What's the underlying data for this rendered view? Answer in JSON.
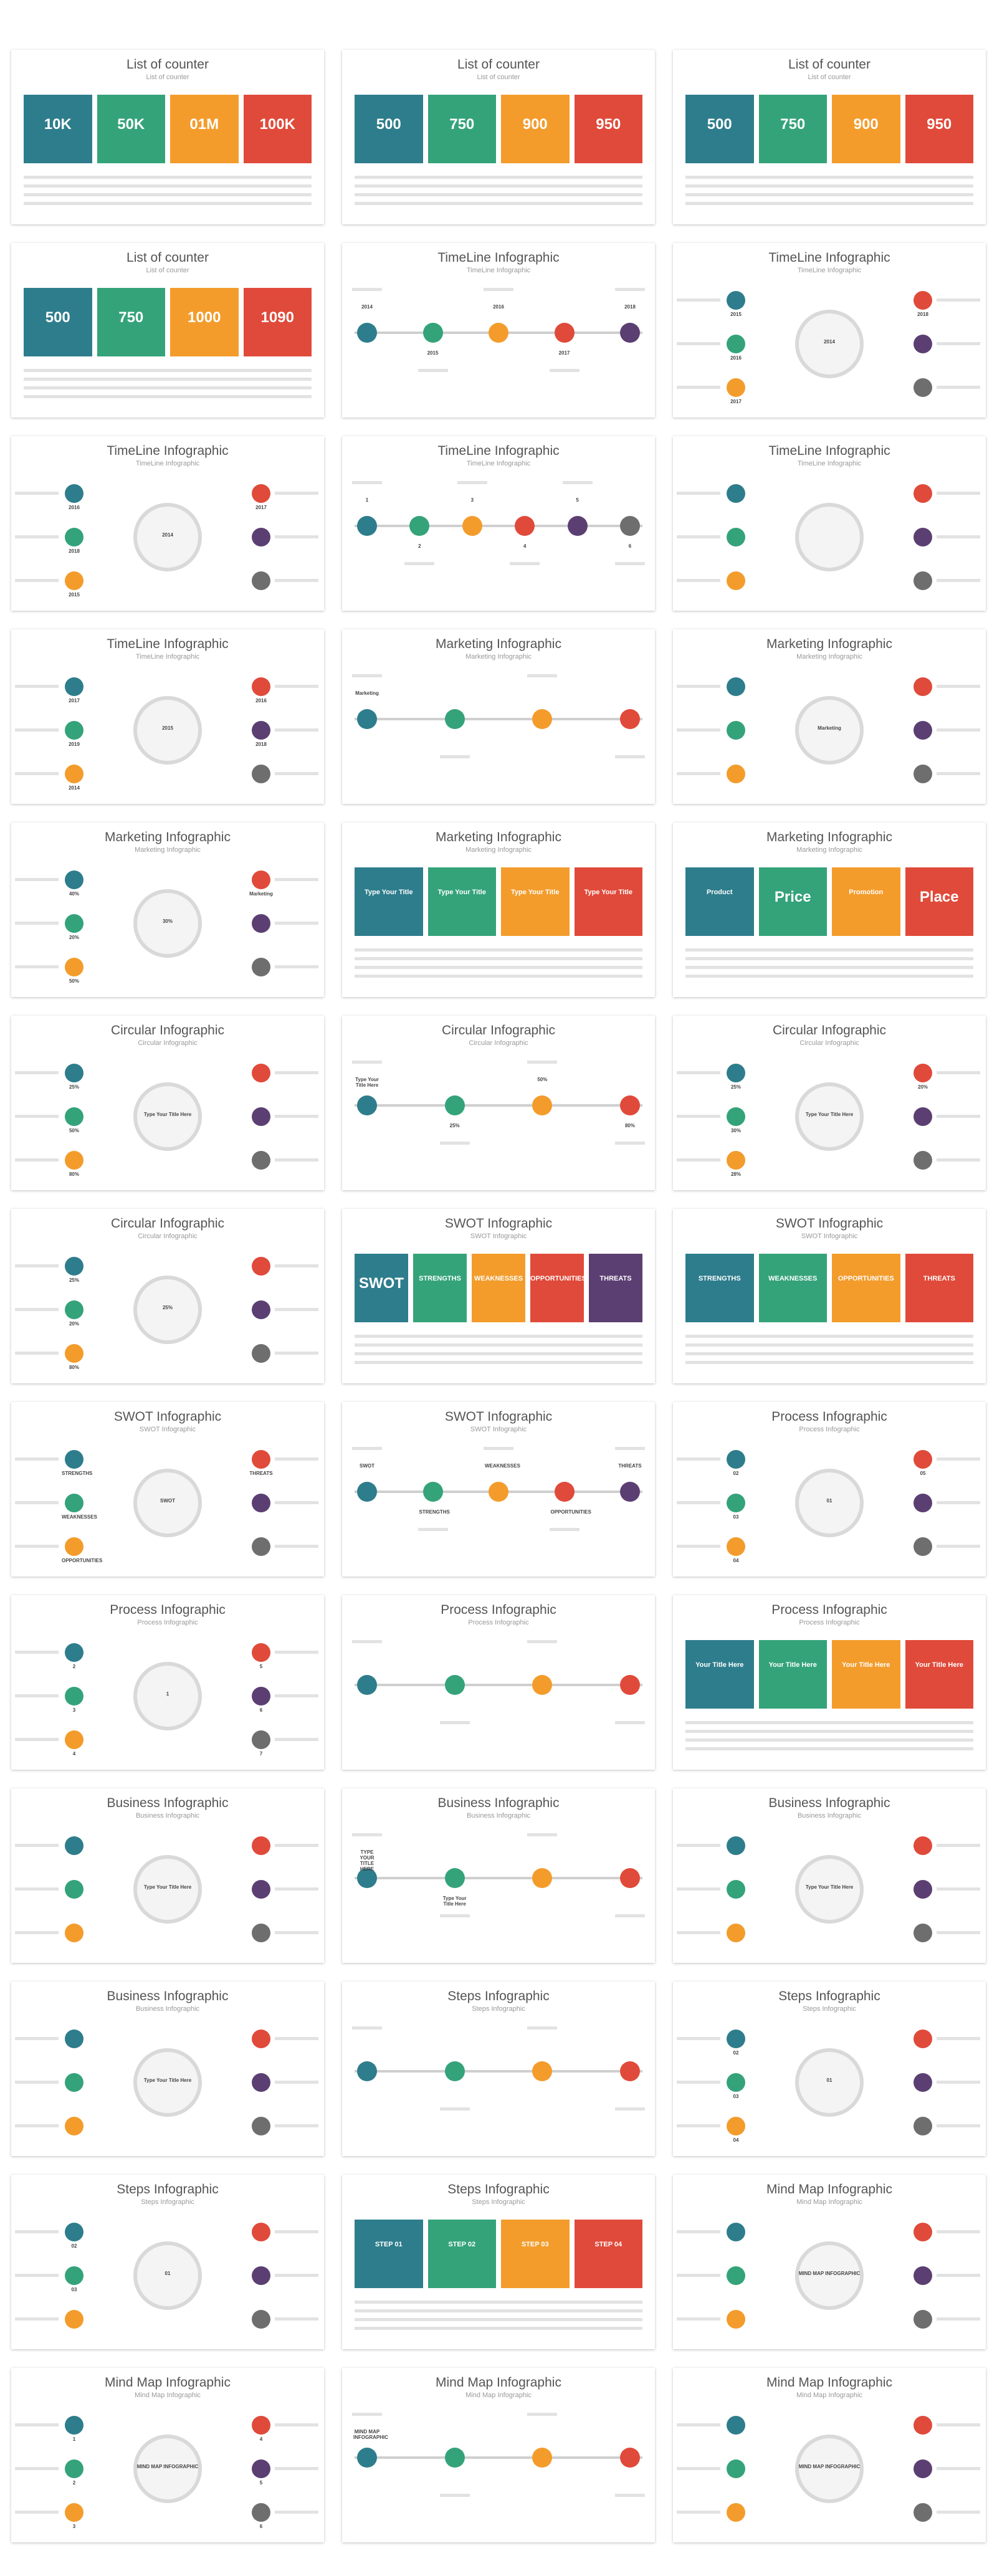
{
  "colors": {
    "teal": "#2e7d8c",
    "green": "#34a37a",
    "orange": "#f39c2c",
    "red": "#e04a3a",
    "purple": "#5b3f72",
    "gray": "#6e6e6e",
    "blue": "#3b6fa0"
  },
  "slides": [
    {
      "title": "List of counter",
      "subtitle": "List of counter",
      "labels": [
        "10K",
        "50K",
        "01M",
        "100K"
      ]
    },
    {
      "title": "List of counter",
      "subtitle": "List of counter",
      "labels": [
        "500",
        "750",
        "900",
        "950"
      ]
    },
    {
      "title": "List of counter",
      "subtitle": "List of counter",
      "labels": [
        "500",
        "750",
        "900",
        "950"
      ]
    },
    {
      "title": "List of counter",
      "subtitle": "List of counter",
      "labels": [
        "500",
        "750",
        "1000",
        "1090"
      ]
    },
    {
      "title": "TimeLine Infographic",
      "subtitle": "TimeLine Infographic",
      "labels": [
        "2014",
        "2015",
        "2016",
        "2017",
        "2018"
      ]
    },
    {
      "title": "TimeLine Infographic",
      "subtitle": "TimeLine Infographic",
      "labels": [
        "2014",
        "2015",
        "2016",
        "2017",
        "2018"
      ]
    },
    {
      "title": "TimeLine Infographic",
      "subtitle": "TimeLine Infographic",
      "labels": [
        "2014",
        "2016",
        "2018",
        "2015",
        "2017"
      ]
    },
    {
      "title": "TimeLine Infographic",
      "subtitle": "TimeLine Infographic",
      "labels": [
        "1",
        "2",
        "3",
        "4",
        "5",
        "6"
      ]
    },
    {
      "title": "TimeLine Infographic",
      "subtitle": "TimeLine Infographic",
      "labels": []
    },
    {
      "title": "TimeLine Infographic",
      "subtitle": "TimeLine Infographic",
      "labels": [
        "2015",
        "2017",
        "2019",
        "2014",
        "2016",
        "2018"
      ]
    },
    {
      "title": "Marketing Infographic",
      "subtitle": "Marketing Infographic",
      "labels": [
        "Marketing"
      ]
    },
    {
      "title": "Marketing Infographic",
      "subtitle": "Marketing Infographic",
      "labels": [
        "Marketing"
      ]
    },
    {
      "title": "Marketing Infographic",
      "subtitle": "Marketing Infographic",
      "labels": [
        "30%",
        "40%",
        "20%",
        "50%",
        "Marketing"
      ]
    },
    {
      "title": "Marketing Infographic",
      "subtitle": "Marketing Infographic",
      "labels": [
        "Type Your Title",
        "Type Your Title",
        "Type Your Title",
        "Type Your Title"
      ]
    },
    {
      "title": "Marketing Infographic",
      "subtitle": "Marketing Infographic",
      "labels": [
        "Product",
        "Price",
        "Promotion",
        "Place"
      ]
    },
    {
      "title": "Circular Infographic",
      "subtitle": "Circular Infographic",
      "labels": [
        "Type Your Title Here",
        "25%",
        "50%",
        "80%"
      ]
    },
    {
      "title": "Circular Infographic",
      "subtitle": "Circular Infographic",
      "labels": [
        "Type Your Title Here",
        "25%",
        "50%",
        "80%"
      ]
    },
    {
      "title": "Circular Infographic",
      "subtitle": "Circular Infographic",
      "labels": [
        "Type Your Title Here",
        "25%",
        "30%",
        "28%",
        "20%"
      ]
    },
    {
      "title": "Circular Infographic",
      "subtitle": "Circular Infographic",
      "labels": [
        "25%",
        "25%",
        "20%",
        "80%"
      ]
    },
    {
      "title": "SWOT Infographic",
      "subtitle": "SWOT Infographic",
      "labels": [
        "SWOT",
        "STRENGTHS",
        "WEAKNESSES",
        "OPPORTUNITIES",
        "THREATS"
      ]
    },
    {
      "title": "SWOT Infographic",
      "subtitle": "SWOT Infographic",
      "labels": [
        "STRENGTHS",
        "WEAKNESSES",
        "OPPORTUNITIES",
        "THREATS"
      ]
    },
    {
      "title": "SWOT Infographic",
      "subtitle": "SWOT Infographic",
      "labels": [
        "SWOT",
        "STRENGTHS",
        "WEAKNESSES",
        "OPPORTUNITIES",
        "THREATS"
      ]
    },
    {
      "title": "SWOT Infographic",
      "subtitle": "SWOT Infographic",
      "labels": [
        "SWOT",
        "STRENGTHS",
        "WEAKNESSES",
        "OPPORTUNITIES",
        "THREATS"
      ]
    },
    {
      "title": "Process Infographic",
      "subtitle": "Process Infographic",
      "labels": [
        "01",
        "02",
        "03",
        "04",
        "05"
      ]
    },
    {
      "title": "Process Infographic",
      "subtitle": "Process Infographic",
      "labels": [
        "1",
        "2",
        "3",
        "4",
        "5",
        "6",
        "7"
      ]
    },
    {
      "title": "Process Infographic",
      "subtitle": "Process Infographic",
      "labels": []
    },
    {
      "title": "Process Infographic",
      "subtitle": "Process Infographic",
      "labels": [
        "Your Title Here",
        "Your Title Here",
        "Your Title Here",
        "Your Title Here"
      ]
    },
    {
      "title": "Business Infographic",
      "subtitle": "Business Infographic",
      "labels": [
        "Type Your Title Here"
      ]
    },
    {
      "title": "Business Infographic",
      "subtitle": "Business Infographic",
      "labels": [
        "TYPE YOUR TITLE HERE",
        "Type Your Title Here"
      ]
    },
    {
      "title": "Business Infographic",
      "subtitle": "Business Infographic",
      "labels": [
        "Type Your Title Here"
      ]
    },
    {
      "title": "Business Infographic",
      "subtitle": "Business Infographic",
      "labels": [
        "Type Your Title Here"
      ]
    },
    {
      "title": "Steps Infographic",
      "subtitle": "Steps Infographic",
      "labels": []
    },
    {
      "title": "Steps Infographic",
      "subtitle": "Steps Infographic",
      "labels": [
        "01",
        "02",
        "03",
        "04"
      ]
    },
    {
      "title": "Steps Infographic",
      "subtitle": "Steps Infographic",
      "labels": [
        "01",
        "02",
        "03"
      ]
    },
    {
      "title": "Steps Infographic",
      "subtitle": "Steps Infographic",
      "labels": [
        "STEP 01",
        "STEP 02",
        "STEP 03",
        "STEP 04"
      ]
    },
    {
      "title": "Mind Map Infographic",
      "subtitle": "Mind Map Infographic",
      "labels": [
        "MIND MAP INFOGRAPHIC"
      ]
    },
    {
      "title": "Mind Map Infographic",
      "subtitle": "Mind Map Infographic",
      "labels": [
        "MIND MAP INFOGRAPHIC",
        "1",
        "2",
        "3",
        "4",
        "5",
        "6"
      ]
    },
    {
      "title": "Mind Map Infographic",
      "subtitle": "Mind Map Infographic",
      "labels": [
        "MIND MAP INFOGRAPHIC"
      ]
    },
    {
      "title": "Mind Map Infographic",
      "subtitle": "Mind Map Infographic",
      "labels": [
        "MIND MAP INFOGRAPHIC"
      ]
    }
  ]
}
